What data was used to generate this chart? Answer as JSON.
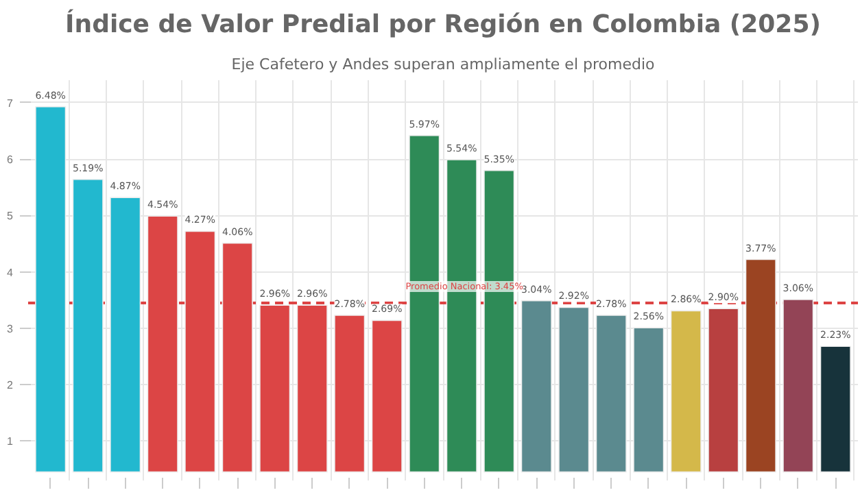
{
  "chart_data": {
    "type": "bar",
    "title": "Índice de Valor Predial por Región en Colombia (2025)",
    "subtitle": "Eje Cafetero y Andes superan ampliamente el promedio",
    "categories": [
      null,
      null,
      null,
      null,
      null,
      null,
      null,
      null,
      null,
      null,
      null,
      null,
      null,
      null,
      null,
      null,
      null,
      null,
      null,
      null,
      null,
      null
    ],
    "values": [
      6.48,
      5.19,
      4.87,
      4.54,
      4.27,
      4.06,
      2.96,
      2.96,
      2.78,
      2.69,
      5.97,
      5.54,
      5.35,
      3.04,
      2.92,
      2.78,
      2.56,
      2.86,
      2.9,
      3.77,
      3.06,
      2.23
    ],
    "base": [
      0.45,
      0.45,
      0.45,
      0.45,
      0.45,
      0.45,
      0.45,
      0.45,
      0.45,
      0.45,
      0.45,
      0.45,
      0.45,
      0.45,
      0.45,
      0.45,
      0.45,
      0.45,
      0.45,
      0.45,
      0.45,
      0.45
    ],
    "colors": [
      "#22b8cf",
      "#22b8cf",
      "#22b8cf",
      "#dc4545",
      "#dc4545",
      "#dc4545",
      "#dc4545",
      "#dc4545",
      "#dc4545",
      "#dc4545",
      "#2e8b57",
      "#2e8b57",
      "#2e8b57",
      "#5b8a8f",
      "#5b8a8f",
      "#5b8a8f",
      "#5b8a8f",
      "#d4b84a",
      "#b84040",
      "#9b4422",
      "#934456",
      "#17333b"
    ],
    "value_labels": [
      "6.48%",
      "5.19%",
      "4.87%",
      "4.54%",
      "4.27%",
      "4.06%",
      "2.96%",
      "2.96%",
      "2.78%",
      "2.69%",
      "5.97%",
      "5.54%",
      "5.35%",
      "3.04%",
      "2.92%",
      "2.78%",
      "2.56%",
      "2.86%",
      "2.90%",
      "3.77%",
      "3.06%",
      "2.23%"
    ],
    "ylim": [
      0.3,
      7.4
    ],
    "yticks": [
      1,
      2,
      3,
      4,
      5,
      6,
      7
    ],
    "grid": true,
    "tick_labels": "y",
    "ref_lines": [
      {
        "axis": "y",
        "value": 3.45,
        "label": "Promedio Nacional: 3.45%",
        "color": "#dd4444",
        "line_style": "dashed"
      }
    ]
  }
}
